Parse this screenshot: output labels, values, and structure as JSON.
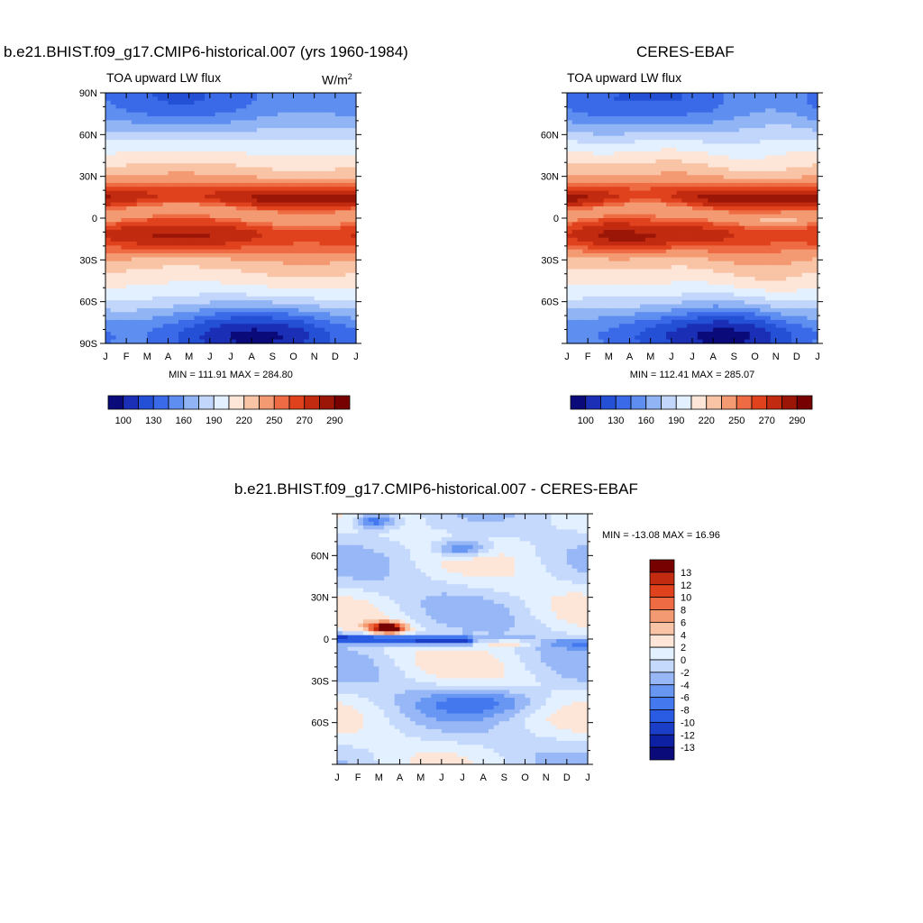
{
  "colormap_abs": [
    "#0a0a7a",
    "#1a2fb5",
    "#2450d6",
    "#3a6ae8",
    "#5e8ef0",
    "#91b4f5",
    "#c2d6fb",
    "#e3f0ff",
    "#fde6d8",
    "#f9c4a6",
    "#f49a72",
    "#ee6b43",
    "#e1421e",
    "#c22b10",
    "#9c1608",
    "#770000"
  ],
  "colormap_diff": [
    "#0a0a7a",
    "#0d1fa3",
    "#1b3ec9",
    "#2a5ce3",
    "#4478ef",
    "#6896f3",
    "#97b7f6",
    "#c4d9fb",
    "#e3f0ff",
    "#fde6d8",
    "#f9c4a6",
    "#f49a72",
    "#ee6b43",
    "#e1421e",
    "#c22b10",
    "#770000"
  ],
  "months": [
    "J",
    "F",
    "M",
    "A",
    "M",
    "J",
    "J",
    "A",
    "S",
    "O",
    "N",
    "D",
    "J"
  ],
  "panels": [
    {
      "title": "b.e21.BHIST.f09_g17.CMIP6-historical.007 (yrs 1960-1984)",
      "subtitle": "TOA upward LW flux",
      "units_base": "W/m",
      "units_exp": "2",
      "minmax": "MIN = 111.91 MAX = 284.80",
      "lat_labels": [
        "90N",
        "60N",
        "30N",
        "0",
        "30S",
        "60S",
        "90S"
      ],
      "colorbar_labels": [
        "100",
        "130",
        "160",
        "190",
        "220",
        "250",
        "270",
        "290"
      ]
    },
    {
      "title": "CERES-EBAF",
      "subtitle": "TOA upward LW flux",
      "units_base": "",
      "units_exp": "",
      "minmax": "MIN = 112.41 MAX = 285.07",
      "lat_labels": [
        "60N",
        "30N",
        "0",
        "30S",
        "60S"
      ],
      "colorbar_labels": [
        "100",
        "130",
        "160",
        "190",
        "220",
        "250",
        "270",
        "290"
      ]
    },
    {
      "title": "b.e21.BHIST.f09_g17.CMIP6-historical.007 - CERES-EBAF",
      "minmax": "MIN = -13.08 MAX =  16.96",
      "lat_labels": [
        "60N",
        "30N",
        "0",
        "30S",
        "60S"
      ],
      "colorbar_labels": [
        "13",
        "12",
        "10",
        "8",
        "6",
        "4",
        "2",
        "0",
        "-2",
        "-4",
        "-6",
        "-8",
        "-10",
        "-12",
        "-13"
      ]
    }
  ],
  "chart_data": [
    {
      "type": "heatmap",
      "title": "b.e21.BHIST.f09_g17.CMIP6-historical.007 (yrs 1960-1984)",
      "subtitle": "TOA upward LW flux",
      "units": "W/m2",
      "x": [
        "J",
        "F",
        "M",
        "A",
        "M",
        "J",
        "J",
        "A",
        "S",
        "O",
        "N",
        "D",
        "J"
      ],
      "ylim": [
        -90,
        90
      ],
      "levels": [
        100,
        115,
        130,
        145,
        160,
        175,
        190,
        205,
        220,
        235,
        250,
        260,
        270,
        280,
        290
      ],
      "min": 111.91,
      "max": 284.8,
      "variant": "model"
    },
    {
      "type": "heatmap",
      "title": "CERES-EBAF",
      "subtitle": "TOA upward LW flux",
      "x": [
        "J",
        "F",
        "M",
        "A",
        "M",
        "J",
        "J",
        "A",
        "S",
        "O",
        "N",
        "D",
        "J"
      ],
      "ylim": [
        -90,
        90
      ],
      "levels": [
        100,
        115,
        130,
        145,
        160,
        175,
        190,
        205,
        220,
        235,
        250,
        260,
        270,
        280,
        290
      ],
      "min": 112.41,
      "max": 285.07,
      "variant": "obs"
    },
    {
      "type": "heatmap",
      "title": "b.e21.BHIST.f09_g17.CMIP6-historical.007 - CERES-EBAF",
      "x": [
        "J",
        "F",
        "M",
        "A",
        "M",
        "J",
        "J",
        "A",
        "S",
        "O",
        "N",
        "D",
        "J"
      ],
      "ylim": [
        -90,
        90
      ],
      "levels": [
        -13,
        -12,
        -10,
        -8,
        -6,
        -4,
        -2,
        0,
        2,
        4,
        6,
        8,
        10,
        12,
        13
      ],
      "min": -13.08,
      "max": 16.96,
      "variant": "diff"
    }
  ]
}
